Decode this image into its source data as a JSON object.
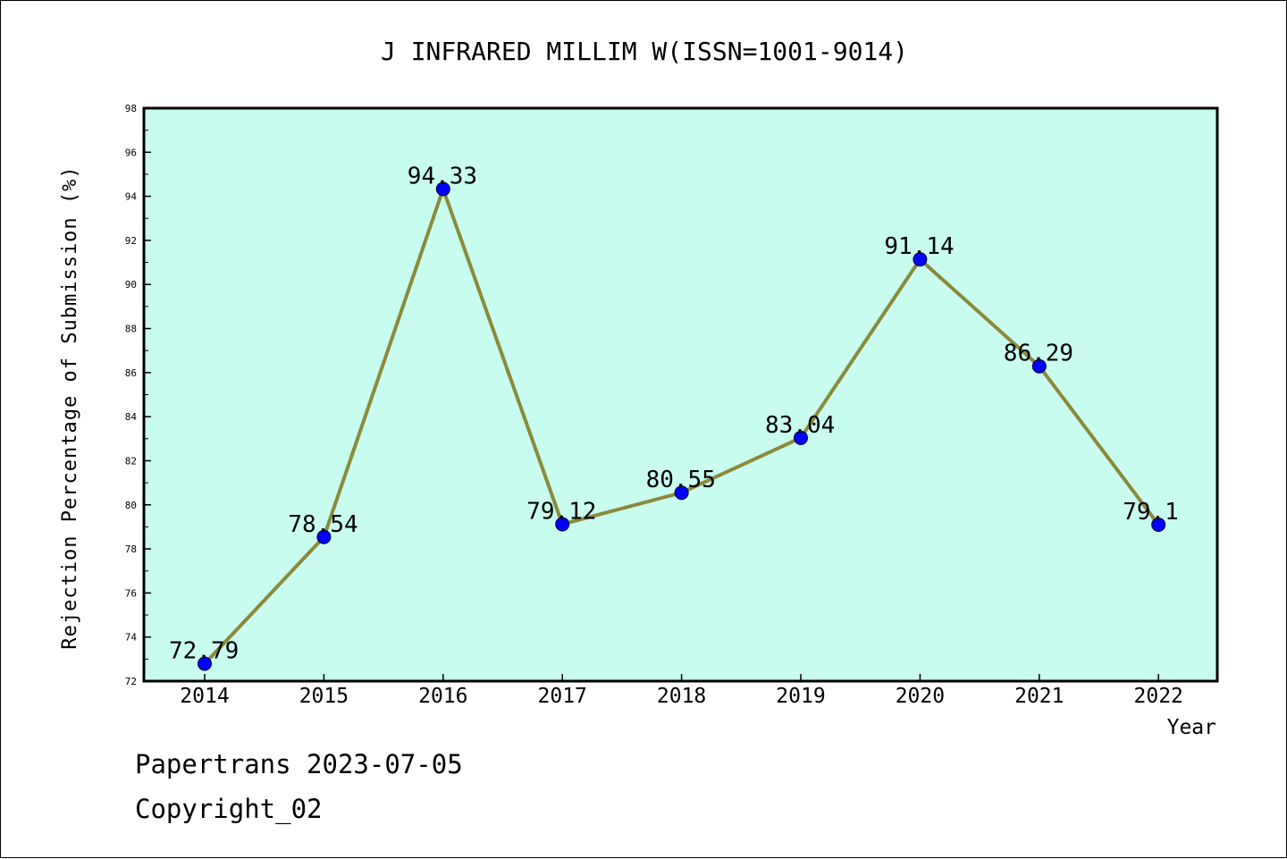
{
  "chart_data": {
    "type": "line",
    "title": "J INFRARED MILLIM W(ISSN=1001-9014)",
    "xlabel": "Year",
    "ylabel": "Rejection Percentage of Submission (%)",
    "categories": [
      "2014",
      "2015",
      "2016",
      "2017",
      "2018",
      "2019",
      "2020",
      "2021",
      "2022"
    ],
    "values": [
      72.79,
      78.54,
      94.33,
      79.12,
      80.55,
      83.04,
      91.14,
      86.29,
      79.1
    ],
    "data_labels": [
      "72.79",
      "78.54",
      "94.33",
      "79.12",
      "80.55",
      "83.04",
      "91.14",
      "86.29",
      "79.1"
    ],
    "ylim": [
      72,
      98
    ],
    "yticks": [
      72,
      74,
      76,
      78,
      80,
      82,
      84,
      86,
      88,
      90,
      92,
      94,
      96,
      98
    ],
    "grid": false,
    "colors": {
      "plot_background": "#c8fcee",
      "line": "#8b8a3a",
      "marker": "#0000ff",
      "axes": "#000000"
    }
  },
  "footer": {
    "source": "Papertrans 2023-07-05",
    "copyright": "Copyright_02"
  }
}
